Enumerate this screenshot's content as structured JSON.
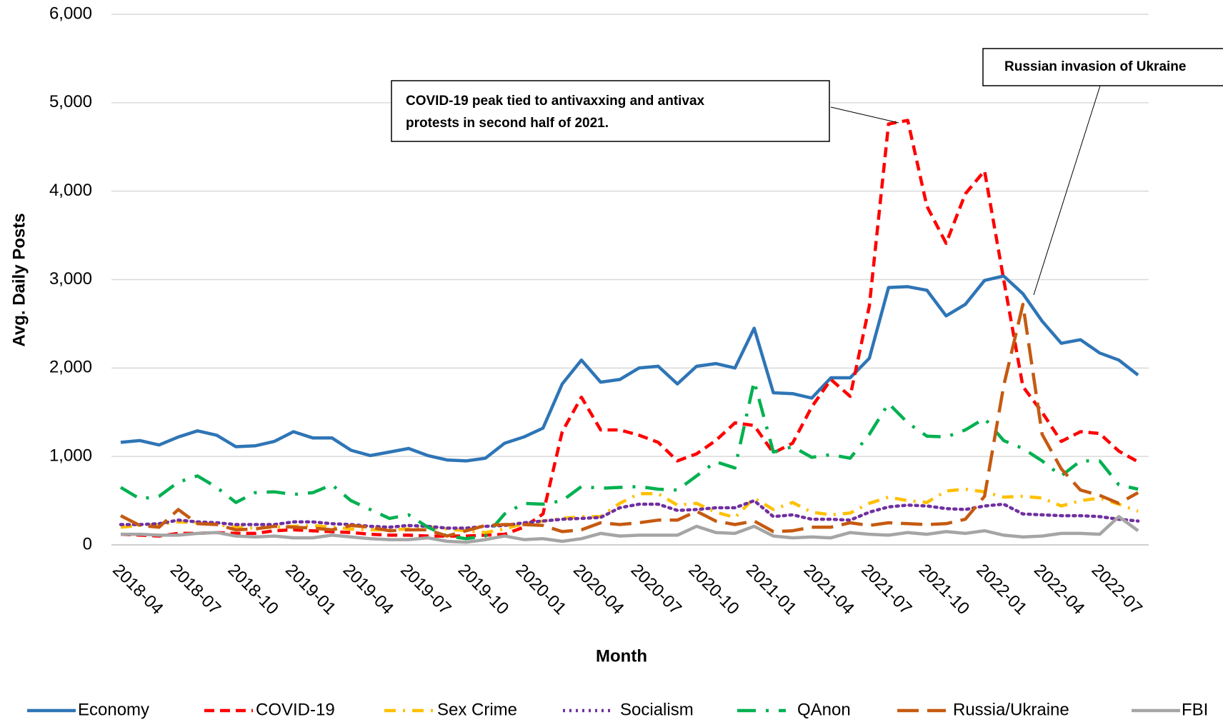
{
  "chart_data": {
    "type": "line",
    "y_label": "Avg. Daily Posts",
    "x_label": "Month",
    "categories": [
      "2018-04",
      null,
      null,
      "2018-07",
      null,
      null,
      "2018-10",
      null,
      null,
      "2019-01",
      null,
      null,
      "2019-04",
      null,
      null,
      "2019-07",
      null,
      null,
      "2019-10",
      null,
      null,
      "2020-01",
      null,
      null,
      "2020-04",
      null,
      null,
      "2020-07",
      null,
      null,
      "2020-10",
      null,
      null,
      "2021-01",
      null,
      null,
      "2021-04",
      null,
      null,
      "2021-07",
      null,
      null,
      "2021-10",
      null,
      null,
      "2022-01",
      null,
      null,
      "2022-04",
      null,
      null,
      "2022-07",
      null,
      null
    ],
    "ylim": [
      0,
      6000
    ],
    "yticks": [
      0,
      {
        "value": 1000,
        "label": "1,000"
      },
      {
        "value": 2000,
        "label": "2,000"
      },
      {
        "value": 3000,
        "label": "3,000"
      },
      {
        "value": 4000,
        "label": "4,000"
      },
      {
        "value": 5000,
        "label": "5,000"
      },
      {
        "value": 6000,
        "label": "6,000"
      }
    ],
    "grid": true,
    "legend": "bottom",
    "series": [
      {
        "name": "Economy",
        "color": "#2e75b6",
        "dash": "solid",
        "values": [
          1160,
          1180,
          1130,
          1220,
          1290,
          1240,
          1110,
          1120,
          1170,
          1280,
          1210,
          1210,
          1070,
          1010,
          1050,
          1090,
          1010,
          960,
          950,
          980,
          1150,
          1220,
          1320,
          1820,
          2090,
          1840,
          1870,
          2000,
          2020,
          1820,
          2020,
          2050,
          2000,
          2450,
          1720,
          1710,
          1660,
          1890,
          1890,
          2110,
          2910,
          2920,
          2880,
          2590,
          2720,
          2990,
          3040,
          2840,
          2530,
          2280,
          2320,
          2170,
          2090,
          1920
        ]
      },
      {
        "name": "COVID-19",
        "color": "#ff0000",
        "dash": "dashed",
        "values": [
          120,
          110,
          100,
          130,
          130,
          140,
          130,
          130,
          160,
          170,
          160,
          150,
          140,
          120,
          110,
          110,
          100,
          100,
          100,
          110,
          120,
          200,
          350,
          1280,
          1670,
          1300,
          1300,
          1240,
          1160,
          950,
          1030,
          1180,
          1380,
          1350,
          1040,
          1150,
          1560,
          1870,
          1680,
          2700,
          4760,
          4800,
          3830,
          3410,
          3970,
          4230,
          3000,
          1790,
          1500,
          1170,
          1280,
          1260,
          1060,
          940
        ]
      },
      {
        "name": "Sex Crime",
        "color": "#ffc000",
        "dash": "dashdot",
        "values": [
          200,
          220,
          230,
          260,
          250,
          230,
          200,
          190,
          200,
          210,
          220,
          200,
          180,
          170,
          170,
          180,
          200,
          180,
          160,
          140,
          180,
          240,
          270,
          300,
          320,
          320,
          470,
          580,
          580,
          450,
          470,
          370,
          310,
          530,
          400,
          480,
          370,
          340,
          360,
          470,
          540,
          500,
          480,
          610,
          630,
          600,
          540,
          550,
          530,
          440,
          500,
          530,
          460,
          380
        ]
      },
      {
        "name": "Socialism",
        "color": "#7030a0",
        "dash": "dotted",
        "values": [
          230,
          230,
          240,
          280,
          260,
          250,
          230,
          230,
          230,
          260,
          260,
          240,
          230,
          210,
          200,
          220,
          210,
          190,
          190,
          210,
          220,
          250,
          270,
          290,
          300,
          310,
          420,
          460,
          460,
          390,
          400,
          420,
          420,
          500,
          320,
          340,
          290,
          290,
          280,
          370,
          430,
          450,
          440,
          410,
          400,
          440,
          460,
          350,
          340,
          330,
          330,
          320,
          290,
          270
        ]
      },
      {
        "name": "QAnon",
        "color": "#00b050",
        "dash": "longdashdot",
        "values": [
          650,
          520,
          550,
          710,
          780,
          650,
          480,
          590,
          600,
          570,
          590,
          680,
          500,
          400,
          300,
          340,
          200,
          100,
          70,
          100,
          350,
          470,
          460,
          500,
          660,
          640,
          650,
          660,
          630,
          620,
          780,
          940,
          870,
          1850,
          1050,
          1110,
          990,
          1020,
          980,
          1250,
          1600,
          1380,
          1230,
          1220,
          1300,
          1430,
          1180,
          1090,
          950,
          780,
          950,
          950,
          680,
          630
        ]
      },
      {
        "name": "Russia/Ukraine",
        "color": "#c55a11",
        "dash": "longdash",
        "values": [
          330,
          220,
          200,
          400,
          240,
          230,
          170,
          180,
          210,
          200,
          190,
          170,
          220,
          200,
          160,
          170,
          170,
          100,
          160,
          220,
          230,
          230,
          220,
          150,
          170,
          250,
          230,
          250,
          280,
          280,
          380,
          270,
          230,
          270,
          150,
          160,
          200,
          200,
          250,
          220,
          250,
          240,
          230,
          240,
          290,
          550,
          1800,
          2720,
          1250,
          860,
          620,
          560,
          470,
          590
        ]
      },
      {
        "name": "FBI",
        "color": "#a5a5a5",
        "dash": "solid",
        "values": [
          120,
          120,
          110,
          110,
          130,
          140,
          100,
          90,
          100,
          80,
          80,
          110,
          90,
          70,
          60,
          60,
          80,
          40,
          30,
          60,
          100,
          60,
          70,
          40,
          70,
          130,
          100,
          110,
          110,
          110,
          210,
          140,
          130,
          210,
          100,
          80,
          90,
          80,
          140,
          120,
          110,
          140,
          120,
          150,
          130,
          160,
          110,
          90,
          100,
          130,
          130,
          120,
          320,
          160
        ]
      }
    ],
    "annotations": [
      {
        "lines": [
          "COVID-19 peak tied to antivaxxing and antivax",
          "protests in second half of 2021."
        ]
      },
      {
        "lines": [
          "Russian invasion of Ukraine"
        ]
      }
    ]
  }
}
